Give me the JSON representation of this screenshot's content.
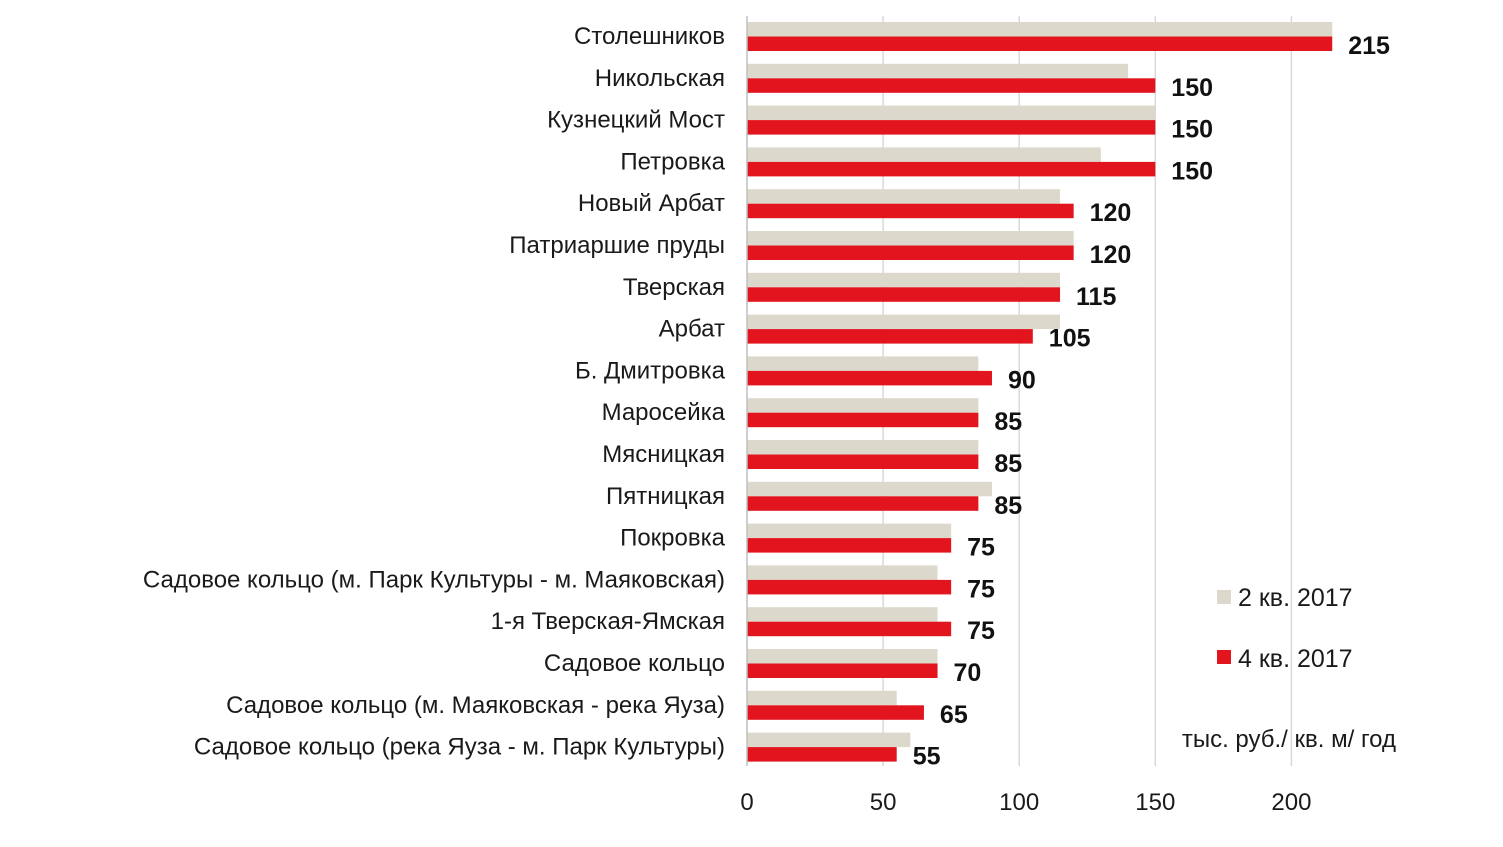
{
  "chart_data": {
    "type": "bar",
    "orientation": "horizontal",
    "categories": [
      "Столешников",
      "Никольская",
      "Кузнецкий Мост",
      "Петровка",
      "Новый Арбат",
      "Патриаршие пруды",
      "Тверская",
      "Арбат",
      "Б. Дмитровка",
      "Маросейка",
      "Мясницкая",
      "Пятницкая",
      "Покровка",
      "Садовое кольцо (м. Парк Культуры - м. Маяковская)",
      "1-я Тверская-Ямская",
      "Садовое кольцо",
      "Садовое кольцо (м. Маяковская - река Яуза)",
      "Садовое кольцо (река Яуза - м. Парк Культуры)"
    ],
    "series": [
      {
        "name": "2 кв. 2017",
        "color": "#ddd8cc",
        "values": [
          215,
          140,
          150,
          130,
          115,
          120,
          115,
          115,
          85,
          85,
          85,
          90,
          75,
          70,
          70,
          70,
          55,
          60
        ]
      },
      {
        "name": "4 кв. 2017",
        "color": "#e2151e",
        "values": [
          215,
          150,
          150,
          150,
          120,
          120,
          115,
          105,
          90,
          85,
          85,
          85,
          75,
          75,
          75,
          70,
          65,
          55
        ]
      }
    ],
    "data_labels_series": "4 кв. 2017",
    "x_ticks": [
      "0",
      "50",
      "100",
      "150",
      "200"
    ],
    "xlim": [
      0,
      225
    ],
    "unit_label": "тыс. руб./ кв. м/ год",
    "grid": "vertical",
    "legend_position": "right"
  }
}
